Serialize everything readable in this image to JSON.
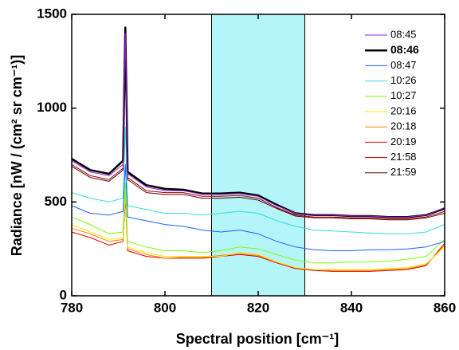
{
  "chart_data": {
    "type": "line",
    "xlabel": "Spectral position [cm⁻¹]",
    "ylabel": "Radiance [nW / (cm² sr cm⁻¹)]",
    "x": [
      780,
      784,
      788,
      791,
      791.5,
      792,
      796,
      800,
      804,
      808,
      812,
      816,
      820,
      824,
      828,
      832,
      836,
      840,
      844,
      848,
      852,
      856,
      860
    ],
    "series": [
      {
        "name": "08:45",
        "color": "#9a1ad6",
        "values": [
          720,
          660,
          640,
          700,
          1400,
          650,
          580,
          560,
          560,
          540,
          540,
          545,
          530,
          480,
          440,
          430,
          430,
          425,
          425,
          420,
          420,
          430,
          470
        ]
      },
      {
        "name": "08:46",
        "color": "#000000",
        "line_width": 2.5,
        "values": [
          730,
          670,
          650,
          720,
          1430,
          660,
          590,
          570,
          565,
          545,
          545,
          550,
          535,
          485,
          440,
          430,
          430,
          425,
          425,
          420,
          420,
          430,
          465
        ]
      },
      {
        "name": "08:47",
        "color": "#1f5fff",
        "values": [
          480,
          440,
          430,
          450,
          700,
          420,
          400,
          380,
          370,
          350,
          340,
          350,
          330,
          290,
          260,
          245,
          240,
          240,
          245,
          245,
          250,
          260,
          290
        ]
      },
      {
        "name": "10:26",
        "color": "#33e0d8",
        "values": [
          550,
          520,
          500,
          520,
          900,
          480,
          460,
          440,
          440,
          430,
          440,
          450,
          440,
          400,
          370,
          350,
          345,
          340,
          335,
          330,
          330,
          340,
          380
        ]
      },
      {
        "name": "10:27",
        "color": "#7fff00",
        "values": [
          420,
          380,
          330,
          340,
          600,
          290,
          260,
          240,
          240,
          230,
          240,
          260,
          250,
          220,
          190,
          175,
          175,
          180,
          180,
          185,
          195,
          210,
          300
        ]
      },
      {
        "name": "20:16",
        "color": "#ffe600",
        "values": [
          380,
          340,
          300,
          310,
          560,
          260,
          230,
          210,
          210,
          210,
          210,
          230,
          220,
          180,
          150,
          140,
          140,
          140,
          140,
          145,
          150,
          170,
          260
        ]
      },
      {
        "name": "20:18",
        "color": "#ff8000",
        "values": [
          360,
          330,
          290,
          300,
          540,
          250,
          220,
          200,
          205,
          205,
          215,
          225,
          215,
          180,
          150,
          140,
          135,
          135,
          135,
          140,
          145,
          165,
          270
        ]
      },
      {
        "name": "20:19",
        "color": "#e00000",
        "values": [
          340,
          310,
          270,
          290,
          520,
          240,
          210,
          200,
          200,
          200,
          210,
          220,
          210,
          175,
          145,
          135,
          130,
          130,
          130,
          135,
          140,
          160,
          280
        ]
      },
      {
        "name": "21:58",
        "color": "#a00000",
        "values": [
          700,
          640,
          620,
          680,
          1350,
          630,
          560,
          550,
          550,
          530,
          530,
          535,
          520,
          470,
          430,
          420,
          420,
          415,
          415,
          410,
          410,
          420,
          450
        ]
      },
      {
        "name": "21:59",
        "color": "#600000",
        "values": [
          690,
          630,
          610,
          670,
          1300,
          620,
          550,
          540,
          540,
          520,
          520,
          525,
          510,
          465,
          425,
          415,
          415,
          410,
          410,
          405,
          405,
          415,
          440
        ]
      }
    ],
    "xlim": [
      780,
      860
    ],
    "xticks": [
      780,
      800,
      820,
      840,
      860
    ],
    "ylim": [
      0,
      1500
    ],
    "yticks": [
      0,
      500,
      1000,
      1500
    ],
    "highlight": [
      810,
      830
    ],
    "highlight_color": "#b3f5f8",
    "legend": "upper right"
  }
}
